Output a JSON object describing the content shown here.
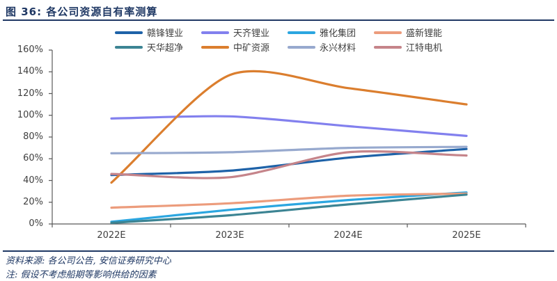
{
  "header": {
    "title": "图 36:  各公司资源自有率测算"
  },
  "footer": {
    "source": "资料来源: 各公司公告, 安信证券研究中心",
    "note": "注: 假设不考虑船期等影响供给的因素"
  },
  "colors": {
    "accent_navy": "#1f3864",
    "axis": "#595959",
    "tick_text": "#404040",
    "background": "#ffffff"
  },
  "chart_data": {
    "type": "line",
    "smooth": true,
    "grid": false,
    "legend_position": "top",
    "categories": [
      "2022E",
      "2023E",
      "2024E",
      "2025E"
    ],
    "series": [
      {
        "name": "赣锋锂业",
        "color": "#1e62a8",
        "values": [
          45,
          49,
          61,
          69
        ]
      },
      {
        "name": "天齐锂业",
        "color": "#8280ee",
        "values": [
          97,
          99,
          90,
          81
        ]
      },
      {
        "name": "雅化集团",
        "color": "#2ba6e0",
        "values": [
          2,
          13,
          22,
          29
        ]
      },
      {
        "name": "盛新锂能",
        "color": "#ec9c7c",
        "values": [
          15,
          19,
          26,
          28
        ]
      },
      {
        "name": "天华超净",
        "color": "#3c8493",
        "values": [
          1,
          8,
          18,
          27
        ]
      },
      {
        "name": "中矿资源",
        "color": "#db7e2e",
        "values": [
          38,
          137,
          125,
          110
        ]
      },
      {
        "name": "永兴材料",
        "color": "#97a9ce",
        "values": [
          65,
          66,
          70,
          71
        ]
      },
      {
        "name": "江特电机",
        "color": "#c5848a",
        "values": [
          46,
          43,
          66,
          63
        ]
      }
    ],
    "ylabel": "",
    "xlabel": "",
    "ylim": [
      0,
      160
    ],
    "ytick_step": 20,
    "ytick_labels": [
      "0%",
      "20%",
      "40%",
      "60%",
      "80%",
      "100%",
      "120%",
      "140%",
      "160%"
    ]
  }
}
